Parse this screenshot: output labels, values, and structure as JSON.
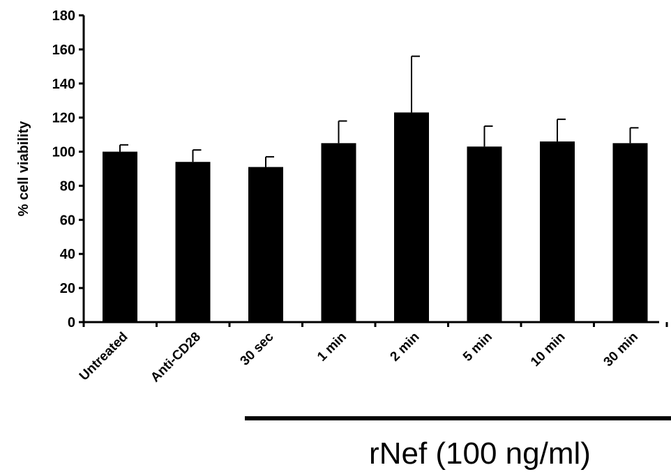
{
  "chart_data": {
    "type": "bar",
    "categories": [
      "Untreated",
      "Anti-CD28",
      "30 sec",
      "1 min",
      "2 min",
      "5 min",
      "10 min",
      "30 min"
    ],
    "values": [
      100,
      94,
      91,
      105,
      123,
      103,
      106,
      105
    ],
    "error_upper": [
      4,
      7,
      6,
      13,
      33,
      12,
      13,
      9
    ],
    "ylabel": "% cell  viability",
    "xlabel": "",
    "ylim": [
      0,
      180
    ],
    "yticks": [
      0,
      20,
      40,
      60,
      80,
      100,
      120,
      140,
      160,
      180
    ],
    "bar_color": "#000000",
    "grid": false,
    "legend": "none",
    "group_annotation": {
      "label": "rNef (100 ng/ml)",
      "from_category": "30 sec",
      "to_category": "30 min"
    }
  }
}
